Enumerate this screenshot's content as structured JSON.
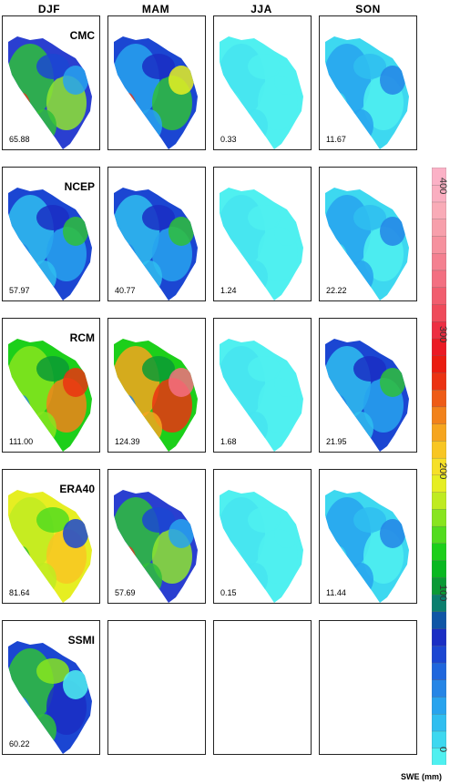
{
  "columns": [
    "DJF",
    "MAM",
    "JJA",
    "SON"
  ],
  "rows": [
    {
      "model": "CMC",
      "values": [
        "65.88",
        "",
        "0.33",
        "11.67"
      ]
    },
    {
      "model": "NCEP",
      "values": [
        "57.97",
        "40.77",
        "1.24",
        "22.22"
      ]
    },
    {
      "model": "RCM",
      "values": [
        "111.00",
        "124.39",
        "1.68",
        "21.95"
      ]
    },
    {
      "model": "ERA40",
      "values": [
        "81.64",
        "57.69",
        "0.15",
        "11.44"
      ]
    },
    {
      "model": "SSMI",
      "values": [
        "60.22",
        "",
        "",
        ""
      ]
    }
  ],
  "panel_styles": [
    [
      "green-blue",
      "blue-green",
      "cyan",
      "light-blue"
    ],
    [
      "blue",
      "blue",
      "cyan",
      "light-blue"
    ],
    [
      "green-red",
      "red-green",
      "cyan",
      "blue"
    ],
    [
      "yellow-green",
      "green-blue",
      "cyan",
      "light-blue"
    ],
    [
      "ssmi",
      "empty",
      "empty",
      "empty"
    ]
  ],
  "colorbar": {
    "title": "SWE (mm)",
    "ticks": [
      "0",
      "100",
      "200",
      "300",
      "400"
    ],
    "colors": [
      "#4ff0f0",
      "#3dd8f0",
      "#2fbef0",
      "#27a3ee",
      "#2585e6",
      "#1f66dd",
      "#1b46d2",
      "#1a2ec4",
      "#0f55a6",
      "#0a7f6e",
      "#0a9a35",
      "#08b820",
      "#1ccf1a",
      "#52dc1e",
      "#88e51f",
      "#bfeb21",
      "#e6ee22",
      "#f6e027",
      "#f8c622",
      "#f6a51e",
      "#f2821a",
      "#ee5b16",
      "#eb3212",
      "#ea1c10",
      "#eb1a24",
      "#ed2e42",
      "#ef4a5a",
      "#f15d6e",
      "#f36f81",
      "#f48090",
      "#f6919e",
      "#f79fab",
      "#f9abb7",
      "#faaec0",
      "#fbb1c6"
    ]
  }
}
